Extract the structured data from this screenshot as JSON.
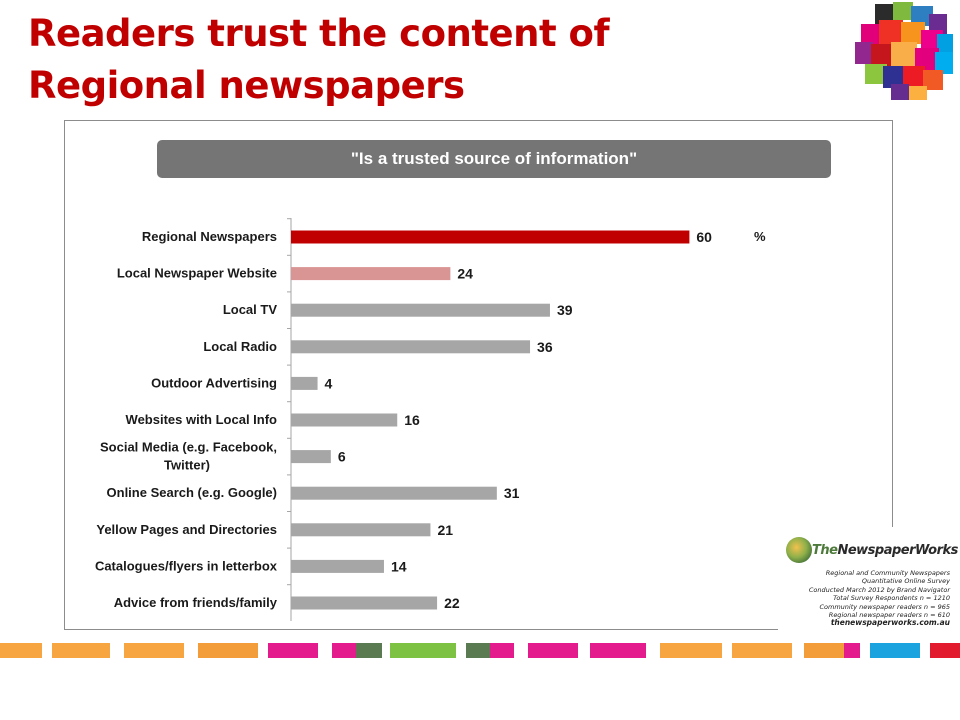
{
  "slide": {
    "title": "Readers trust the content of Regional newspapers",
    "question": "\"Is a trusted source of information\""
  },
  "chart_data": {
    "type": "bar",
    "orientation": "horizontal",
    "categories": [
      "Regional Newspapers",
      "Local Newspaper Website",
      "Local TV",
      "Local Radio",
      "Outdoor Advertising",
      "Websites with Local Info",
      "Social Media (e.g. Facebook, Twitter)",
      "Online Search (e.g. Google)",
      "Yellow Pages and Directories",
      "Catalogues/flyers in letterbox",
      "Advice from friends/family"
    ],
    "values": [
      60,
      24,
      39,
      36,
      4,
      16,
      6,
      31,
      21,
      14,
      22
    ],
    "unit_label": "%",
    "bar_colors": [
      "#c00000",
      "#d99594",
      "#a6a6a6",
      "#a6a6a6",
      "#a6a6a6",
      "#a6a6a6",
      "#a6a6a6",
      "#a6a6a6",
      "#a6a6a6",
      "#a6a6a6",
      "#a6a6a6"
    ],
    "data_labels": true,
    "xlim": [
      0,
      60
    ],
    "grid": false,
    "legend": "none"
  },
  "source": {
    "brand_the": "The",
    "brand_rest": "NewspaperWorks",
    "notes": [
      "Regional and Community Newspapers",
      "Quantitative Online Survey",
      "Conducted March 2012 by Brand Navigator",
      "Total Survey Respondents n = 1210",
      "Community newspaper readers n = 965",
      "Regional newspaper readers n = 610"
    ],
    "url": "thenewspaperworks.com.au"
  },
  "colors": {
    "title": "#c00000",
    "banner": "#757575",
    "highlight_bar": "#c00000",
    "secondary_bar": "#d99594",
    "neutral_bar": "#a6a6a6"
  }
}
